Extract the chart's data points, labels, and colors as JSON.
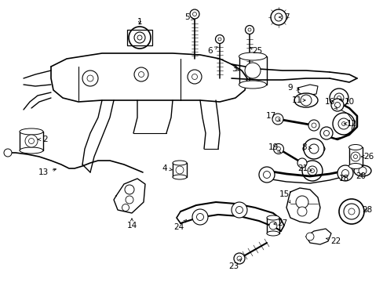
{
  "background_color": "#ffffff",
  "figsize": [
    4.89,
    3.6
  ],
  "dpi": 100,
  "font_size_labels": 7.5,
  "line_color": "#000000",
  "line_width": 0.7
}
